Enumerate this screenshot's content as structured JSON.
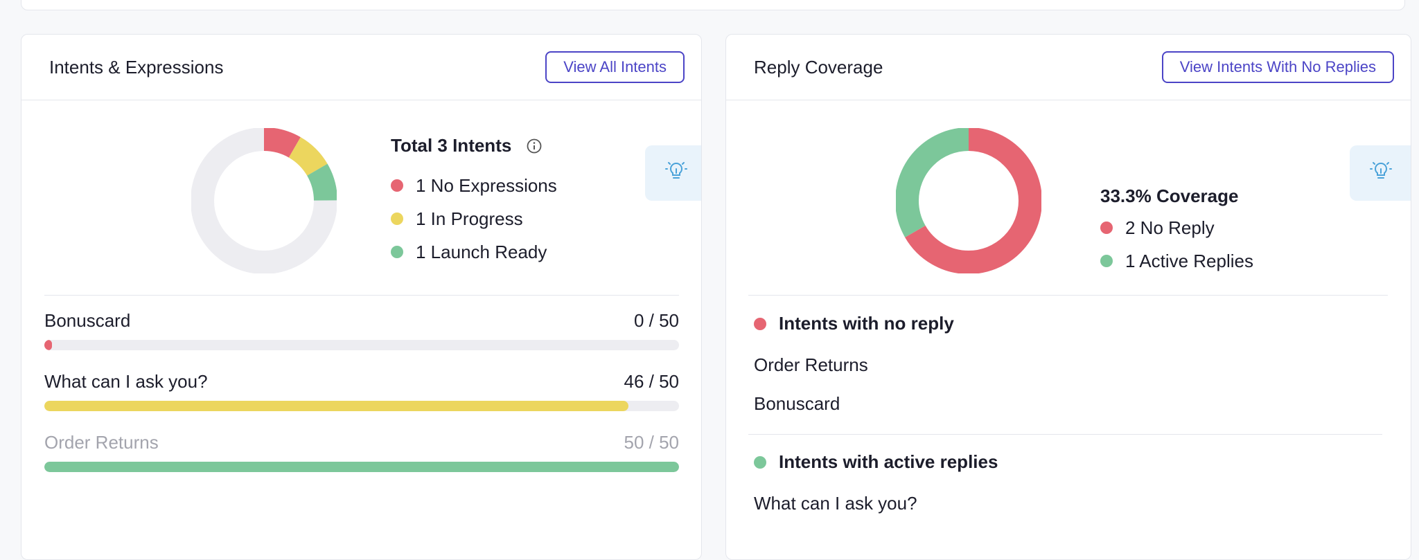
{
  "colors": {
    "red": "#e66572",
    "yellow": "#ecd65e",
    "green": "#7cc79a",
    "track": "#ededf1",
    "accent": "#4b44c6",
    "tip": "#4aa2d9"
  },
  "intents_card": {
    "title": "Intents & Expressions",
    "button_label": "View All Intents",
    "total_label": "Total 3 Intents",
    "info_icon": "info-icon",
    "tip_icon": "lightbulb-icon",
    "legend": [
      {
        "label": "1 No Expressions",
        "color": "#e66572",
        "count": 1
      },
      {
        "label": "1 In Progress",
        "color": "#ecd65e",
        "count": 1
      },
      {
        "label": "1 Launch Ready",
        "color": "#7cc79a",
        "count": 1
      }
    ],
    "donut_segments": [
      {
        "name": "No Expressions",
        "fraction": 0.083,
        "color": "#e66572"
      },
      {
        "name": "In Progress",
        "fraction": 0.083,
        "color": "#ecd65e"
      },
      {
        "name": "Launch Ready",
        "fraction": 0.083,
        "color": "#7cc79a"
      }
    ],
    "progress": [
      {
        "name": "Bonuscard",
        "value_label": "0 / 50",
        "value": 0,
        "max": 50,
        "color": "#e66572",
        "muted": false
      },
      {
        "name": "What can I ask you?",
        "value_label": "46 / 50",
        "value": 46,
        "max": 50,
        "color": "#ecd65e",
        "muted": false
      },
      {
        "name": "Order Returns",
        "value_label": "50 / 50",
        "value": 50,
        "max": 50,
        "color": "#7cc79a",
        "muted": true
      }
    ]
  },
  "coverage_card": {
    "title": "Reply Coverage",
    "button_label": "View Intents With No Replies",
    "coverage_label": "33.3% Coverage",
    "tip_icon": "lightbulb-icon",
    "legend": [
      {
        "label": "2 No Reply",
        "color": "#e66572",
        "count": 2
      },
      {
        "label": "1 Active Replies",
        "color": "#7cc79a",
        "count": 1
      }
    ],
    "sections": {
      "no_reply": {
        "heading": "Intents with no reply",
        "color": "#e66572",
        "items": [
          "Order Returns",
          "Bonuscard"
        ]
      },
      "active": {
        "heading": "Intents with active replies",
        "color": "#7cc79a",
        "items": [
          "What can I ask you?"
        ]
      }
    }
  }
}
